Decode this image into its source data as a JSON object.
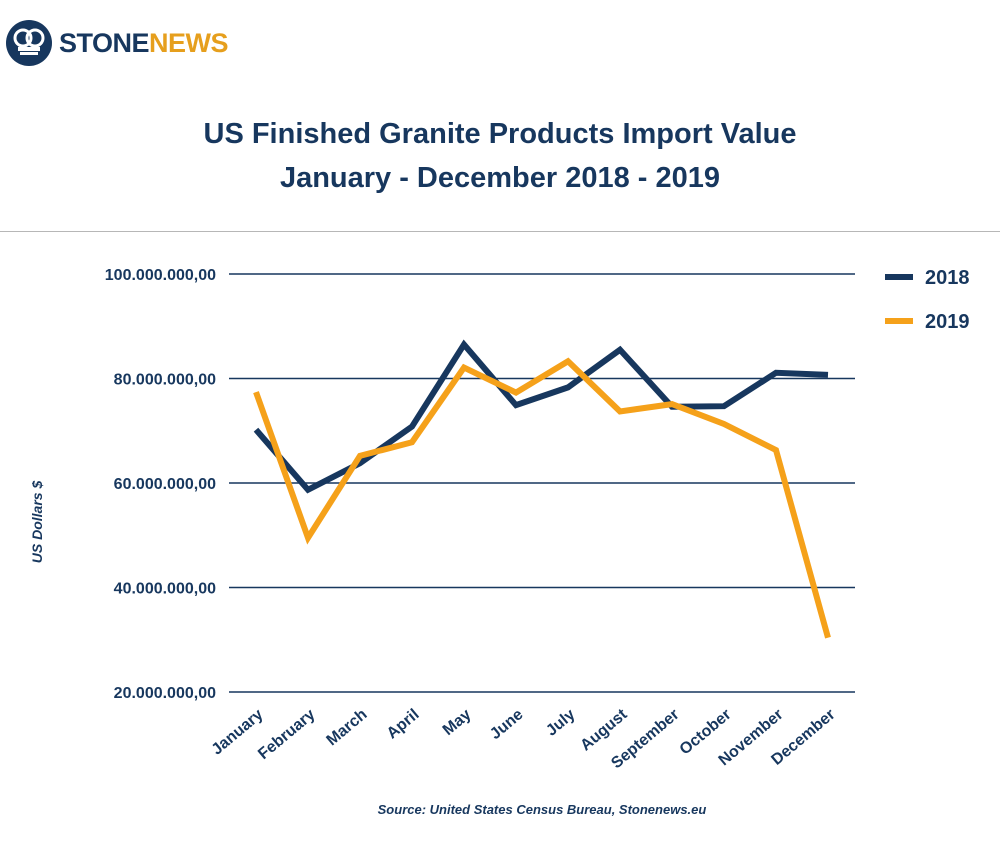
{
  "brand": {
    "name_part1": "STONE",
    "name_part2": "NEWS"
  },
  "colors": {
    "navy": "#17375e",
    "orange": "#f5a11a",
    "grid": "#17375e"
  },
  "chart_data": {
    "type": "line",
    "title": "US Finished Granite Products Import Value",
    "subtitle": "January - December 2018 - 2019",
    "ylabel": "US Dollars $",
    "xlabel": "",
    "ylim": [
      20000000,
      100000000
    ],
    "yticks": [
      {
        "value": 100000000,
        "label": "100.000.000,00"
      },
      {
        "value": 80000000,
        "label": "80.000.000,00"
      },
      {
        "value": 60000000,
        "label": "60.000.000,00"
      },
      {
        "value": 40000000,
        "label": "40.000.000,00"
      },
      {
        "value": 20000000,
        "label": "20.000.000,00"
      }
    ],
    "grid": true,
    "legend_position": "top-right",
    "categories": [
      "January",
      "February",
      "March",
      "April",
      "May",
      "June",
      "July",
      "August",
      "September",
      "October",
      "November",
      "December"
    ],
    "series": [
      {
        "name": "2018",
        "color": "#17375e",
        "values": [
          70200000,
          58700000,
          63800000,
          70800000,
          86500000,
          74900000,
          78300000,
          85500000,
          74600000,
          74700000,
          81100000,
          80700000
        ]
      },
      {
        "name": "2019",
        "color": "#f5a11a",
        "values": [
          77400000,
          49500000,
          65200000,
          67800000,
          82100000,
          77300000,
          83300000,
          73700000,
          75100000,
          71300000,
          66300000,
          30400000
        ]
      }
    ],
    "source": "Source: United States Census Bureau, Stonenews.eu"
  }
}
